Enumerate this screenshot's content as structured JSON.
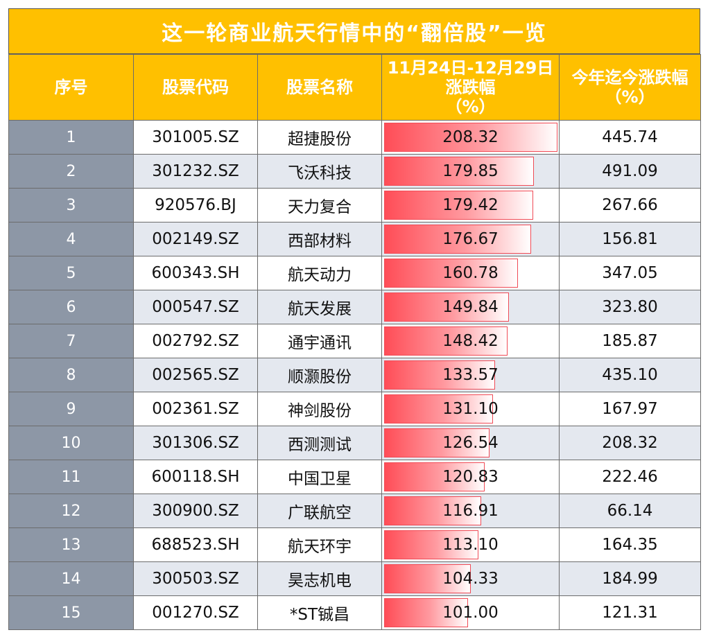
{
  "title": "这一轮商业航天行情中的“翻倍股”一览",
  "headers": {
    "idx": "序号",
    "code": "股票代码",
    "name": "股票名称",
    "period_line1": "11月24日-12月29日",
    "period_line2": "涨跌幅",
    "period_line3": "（%）",
    "ytd_line1": "今年迄今涨跌幅",
    "ytd_line2": "（%）"
  },
  "bar_color": "#FF4D57",
  "rows": [
    {
      "idx": "1",
      "code": "301005.SZ",
      "name": "超捷股份",
      "period": "208.32",
      "ytd": "445.74"
    },
    {
      "idx": "2",
      "code": "301232.SZ",
      "name": "飞沃科技",
      "period": "179.85",
      "ytd": "491.09"
    },
    {
      "idx": "3",
      "code": "920576.BJ",
      "name": "天力复合",
      "period": "179.42",
      "ytd": "267.66"
    },
    {
      "idx": "4",
      "code": "002149.SZ",
      "name": "西部材料",
      "period": "176.67",
      "ytd": "156.81"
    },
    {
      "idx": "5",
      "code": "600343.SH",
      "name": "航天动力",
      "period": "160.78",
      "ytd": "347.05"
    },
    {
      "idx": "6",
      "code": "000547.SZ",
      "name": "航天发展",
      "period": "149.84",
      "ytd": "323.80"
    },
    {
      "idx": "7",
      "code": "002792.SZ",
      "name": "通宇通讯",
      "period": "148.42",
      "ytd": "185.87"
    },
    {
      "idx": "8",
      "code": "002565.SZ",
      "name": "顺灏股份",
      "period": "133.57",
      "ytd": "435.10"
    },
    {
      "idx": "9",
      "code": "002361.SZ",
      "name": "神剑股份",
      "period": "131.10",
      "ytd": "167.97"
    },
    {
      "idx": "10",
      "code": "301306.SZ",
      "name": "西测测试",
      "period": "126.54",
      "ytd": "208.32"
    },
    {
      "idx": "11",
      "code": "600118.SH",
      "name": "中国卫星",
      "period": "120.83",
      "ytd": "222.46"
    },
    {
      "idx": "12",
      "code": "300900.SZ",
      "name": "广联航空",
      "period": "116.91",
      "ytd": "66.14"
    },
    {
      "idx": "13",
      "code": "688523.SH",
      "name": "航天环宇",
      "period": "113.10",
      "ytd": "164.35"
    },
    {
      "idx": "14",
      "code": "300503.SZ",
      "name": "昊志机电",
      "period": "104.33",
      "ytd": "184.99"
    },
    {
      "idx": "15",
      "code": "001270.SZ",
      "name": "*ST铖昌",
      "period": "101.00",
      "ytd": "121.31"
    }
  ]
}
